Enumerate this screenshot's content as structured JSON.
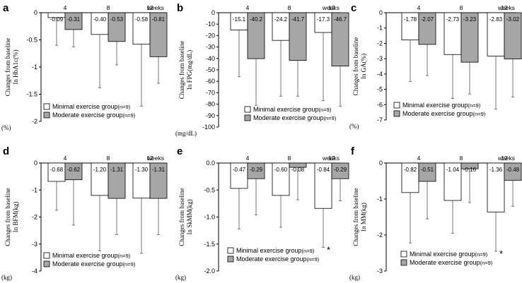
{
  "colors": {
    "minimal_fill": "#ffffff",
    "moderate_fill": "#a6a6a6",
    "stroke": "#000000",
    "errorbar": "#555555"
  },
  "legend": {
    "minimal_label": "Minimal exercise group",
    "moderate_label": "Moderate exercise group",
    "n_label": "(n=9)"
  },
  "chart_data": [
    {
      "panel": "a",
      "type": "bar",
      "categories": [
        "4",
        "8",
        "12"
      ],
      "xunit": "weeks",
      "ylabel": [
        "Changes from baseline",
        "In HbA1c(%)"
      ],
      "yunit": "(%)",
      "ylim": [
        -2,
        0
      ],
      "yticks": [
        0,
        -0.5,
        -1,
        -1.5,
        -2
      ],
      "ytick_labels": [
        "0",
        "-0.5",
        "-1",
        "-1.5",
        "-2"
      ],
      "series": [
        {
          "group": "minimal",
          "values": [
            -0.09,
            -0.4,
            -0.58
          ],
          "labels": [
            "-0.09",
            "-0.40",
            "-0.58"
          ],
          "err_low": [
            -0.6,
            -1.38,
            -1.72
          ]
        },
        {
          "group": "moderate",
          "values": [
            -0.31,
            -0.53,
            -0.81
          ],
          "labels": [
            "-0.31",
            "-0.53",
            "-0.81"
          ],
          "err_low": [
            -0.63,
            -0.96,
            -1.3
          ]
        }
      ],
      "legend_position": "bottom-center"
    },
    {
      "panel": "b",
      "type": "bar",
      "categories": [
        "4",
        "8",
        "12"
      ],
      "xunit": "weeks",
      "ylabel": [
        "Changes from baseline",
        "In FPG(mg/dL)"
      ],
      "yunit": "(mg/dL)",
      "ylim": [
        -100,
        0
      ],
      "yticks": [
        0,
        -10,
        -20,
        -30,
        -40,
        -50,
        -60,
        -70,
        -80,
        -90,
        -100
      ],
      "ytick_labels": [
        "0",
        "-10",
        "-20",
        "-30",
        "-40",
        "-50",
        "-60",
        "-70",
        "-80",
        "-90",
        "-100"
      ],
      "series": [
        {
          "group": "minimal",
          "values": [
            -15.1,
            -24.2,
            -17.3
          ],
          "labels": [
            "-15.1",
            "-24.2",
            "-17.3"
          ],
          "err_low": [
            -56,
            -73,
            -77
          ]
        },
        {
          "group": "moderate",
          "values": [
            -40.2,
            -41.7,
            -46.7
          ],
          "labels": [
            "-40.2",
            "-41.7",
            "-46.7"
          ],
          "err_low": [
            -81,
            -73,
            -82
          ]
        }
      ],
      "legend_position": "bottom-center"
    },
    {
      "panel": "c",
      "type": "bar",
      "categories": [
        "4",
        "8",
        "12"
      ],
      "xunit": "weeks",
      "ylabel": [
        "Changes from baseline",
        "In GA(%)"
      ],
      "yunit": "(%)",
      "ylim": [
        -7,
        0
      ],
      "yticks": [
        0,
        -1,
        -2,
        -3,
        -4,
        -5,
        -6,
        -7
      ],
      "ytick_labels": [
        "0",
        "-1",
        "-2",
        "-3",
        "-4",
        "-5",
        "-6",
        "-7"
      ],
      "series": [
        {
          "group": "minimal",
          "values": [
            -1.78,
            -2.73,
            -2.83
          ],
          "labels": [
            "-1.78",
            "-2.73",
            "-2.83"
          ],
          "err_low": [
            -4.5,
            -5.6,
            -6.3
          ]
        },
        {
          "group": "moderate",
          "values": [
            -2.07,
            -3.23,
            -3.02
          ],
          "labels": [
            "-2.07",
            "-3.23",
            "-3.02"
          ],
          "err_low": [
            -4.1,
            -5.3,
            -5.5
          ]
        }
      ],
      "legend_position": "bottom-center"
    },
    {
      "panel": "d",
      "type": "bar",
      "categories": [
        "4",
        "8",
        "12"
      ],
      "xunit": "weeks",
      "ylabel": [
        "Changes from baseline",
        "In BFM(kg)"
      ],
      "yunit": "(kg)",
      "ylim": [
        -4,
        0
      ],
      "yticks": [
        0,
        -1,
        -2,
        -3,
        -4
      ],
      "ytick_labels": [
        "0",
        "-1",
        "-2",
        "-3",
        "-4"
      ],
      "series": [
        {
          "group": "minimal",
          "values": [
            -0.68,
            -1.2,
            -1.3
          ],
          "labels": [
            "-0.68",
            "-1.20",
            "-1.30"
          ],
          "err_low": [
            -1.75,
            -3.25,
            -3.35
          ]
        },
        {
          "group": "moderate",
          "values": [
            -0.62,
            -1.31,
            -1.31
          ],
          "labels": [
            "-0.62",
            "-1.31",
            "-1.31"
          ],
          "err_low": [
            -2.3,
            -2.65,
            -2.65
          ]
        }
      ],
      "legend_position": "bottom-center"
    },
    {
      "panel": "e",
      "type": "bar",
      "categories": [
        "4",
        "8",
        "12"
      ],
      "xunit": "weeks",
      "ylabel": [
        "Changes from baseline",
        "In SkMM(kg)"
      ],
      "yunit": "(kg)",
      "ylim": [
        -2,
        0
      ],
      "yticks": [
        0,
        -0.5,
        -1,
        -1.5,
        -2
      ],
      "ytick_labels": [
        "0.0",
        "-0.5",
        "-1.0",
        "-1.5",
        "-2.0"
      ],
      "series": [
        {
          "group": "minimal",
          "values": [
            -0.47,
            -0.6,
            -0.84
          ],
          "labels": [
            "-0.47",
            "-0.60",
            "-0.84"
          ],
          "err_low": [
            -1.22,
            -1.19,
            -1.56
          ]
        },
        {
          "group": "moderate",
          "values": [
            -0.29,
            -0.08,
            -0.29
          ],
          "labels": [
            "-0.29",
            "-0.08",
            "-0.29"
          ],
          "err_low": [
            -0.96,
            -0.68,
            -0.7
          ]
        }
      ],
      "significance": [
        {
          "category": "12",
          "group": "minimal",
          "mark": "*"
        }
      ],
      "legend_position": "bottom-center"
    },
    {
      "panel": "f",
      "type": "bar",
      "categories": [
        "4",
        "8",
        "12"
      ],
      "xunit": "weeks",
      "ylabel": [
        "Changes from baseline",
        "In MM(kg)"
      ],
      "yunit": "(kg)",
      "ylim": [
        -3,
        0
      ],
      "yticks": [
        0,
        -1,
        -2,
        -3
      ],
      "ytick_labels": [
        "0",
        "-1",
        "-2",
        "-3"
      ],
      "series": [
        {
          "group": "minimal",
          "values": [
            -0.82,
            -1.04,
            -1.36
          ],
          "labels": [
            "-0.82",
            "-1.04",
            "-1.36"
          ],
          "err_low": [
            -2.22,
            -1.95,
            -2.45
          ]
        },
        {
          "group": "moderate",
          "values": [
            -0.51,
            -0.16,
            -0.48
          ],
          "labels": [
            "-0.51",
            "-0.16",
            "-0.48"
          ],
          "err_low": [
            -1.55,
            -1.1,
            -1.2
          ]
        }
      ],
      "significance": [
        {
          "category": "12",
          "group": "minimal",
          "mark": "*"
        }
      ],
      "legend_position": "bottom-center"
    }
  ]
}
